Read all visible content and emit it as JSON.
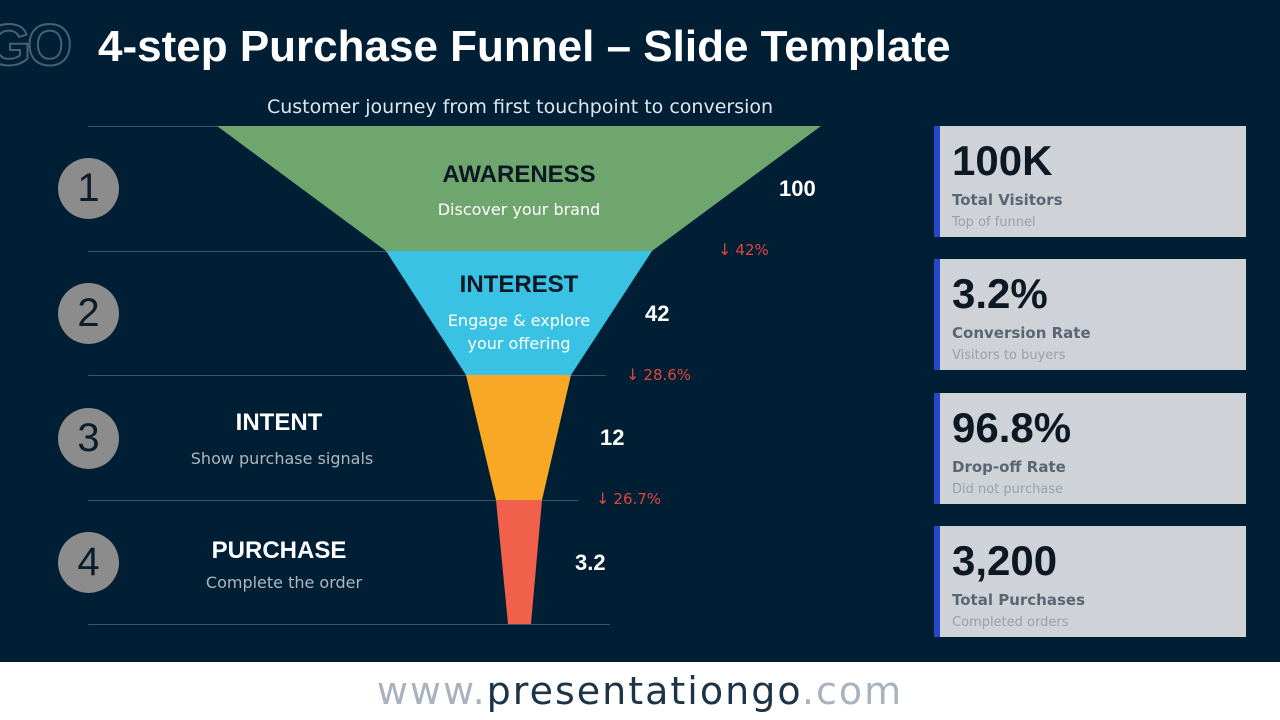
{
  "slide": {
    "logo_mark": "GO",
    "title": "4-step Purchase Funnel – Slide Template",
    "subtitle": "Customer journey from first touchpoint to conversion"
  },
  "steps": [
    {
      "number": "1",
      "label": "AWARENESS",
      "description": "Discover your brand",
      "value_label": "100",
      "color": "#6fa66e"
    },
    {
      "number": "2",
      "label": "INTEREST",
      "description": "Engage & explore your offering",
      "value_label": "42",
      "color": "#39c2e3"
    },
    {
      "number": "3",
      "label": "INTENT",
      "description": "Show purchase signals",
      "value_label": "12",
      "color": "#f9a825"
    },
    {
      "number": "4",
      "label": "PURCHASE",
      "description": "Complete the order",
      "value_label": "3.2",
      "color": "#f0604a"
    }
  ],
  "dropoffs": [
    {
      "arrow": "↓",
      "text": "42%"
    },
    {
      "arrow": "↓",
      "text": "28.6%"
    },
    {
      "arrow": "↓",
      "text": "26.7%"
    }
  ],
  "kpis": [
    {
      "value": "100K",
      "label": "Total Visitors",
      "sub": "Top of funnel"
    },
    {
      "value": "3.2%",
      "label": "Conversion Rate",
      "sub": "Visitors to buyers"
    },
    {
      "value": "96.8%",
      "label": "Drop-off Rate",
      "sub": "Did not purchase"
    },
    {
      "value": "3,200",
      "label": "Total Purchases",
      "sub": "Completed orders"
    }
  ],
  "kpi_accent": "#2348c8",
  "footer": {
    "prefix": "www.",
    "brand": "presentationgo",
    "suffix": ".com"
  }
}
